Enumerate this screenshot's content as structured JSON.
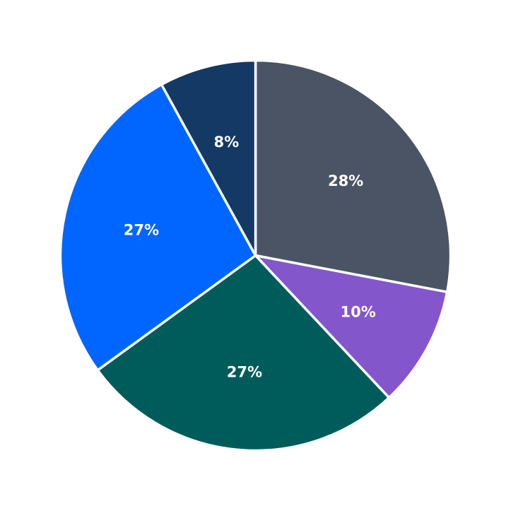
{
  "chart_data": {
    "type": "pie",
    "start_angle_deg": 90,
    "direction": "clockwise",
    "slices": [
      {
        "value": 28,
        "label": "28%",
        "color": "#4a5464"
      },
      {
        "value": 10,
        "label": "10%",
        "color": "#8456cc"
      },
      {
        "value": 27,
        "label": "27%",
        "color": "#005c5b"
      },
      {
        "value": 27,
        "label": "27%",
        "color": "#0066ff"
      },
      {
        "value": 8,
        "label": "8%",
        "color": "#143964"
      }
    ],
    "slice_border_color": "#ffffff"
  }
}
